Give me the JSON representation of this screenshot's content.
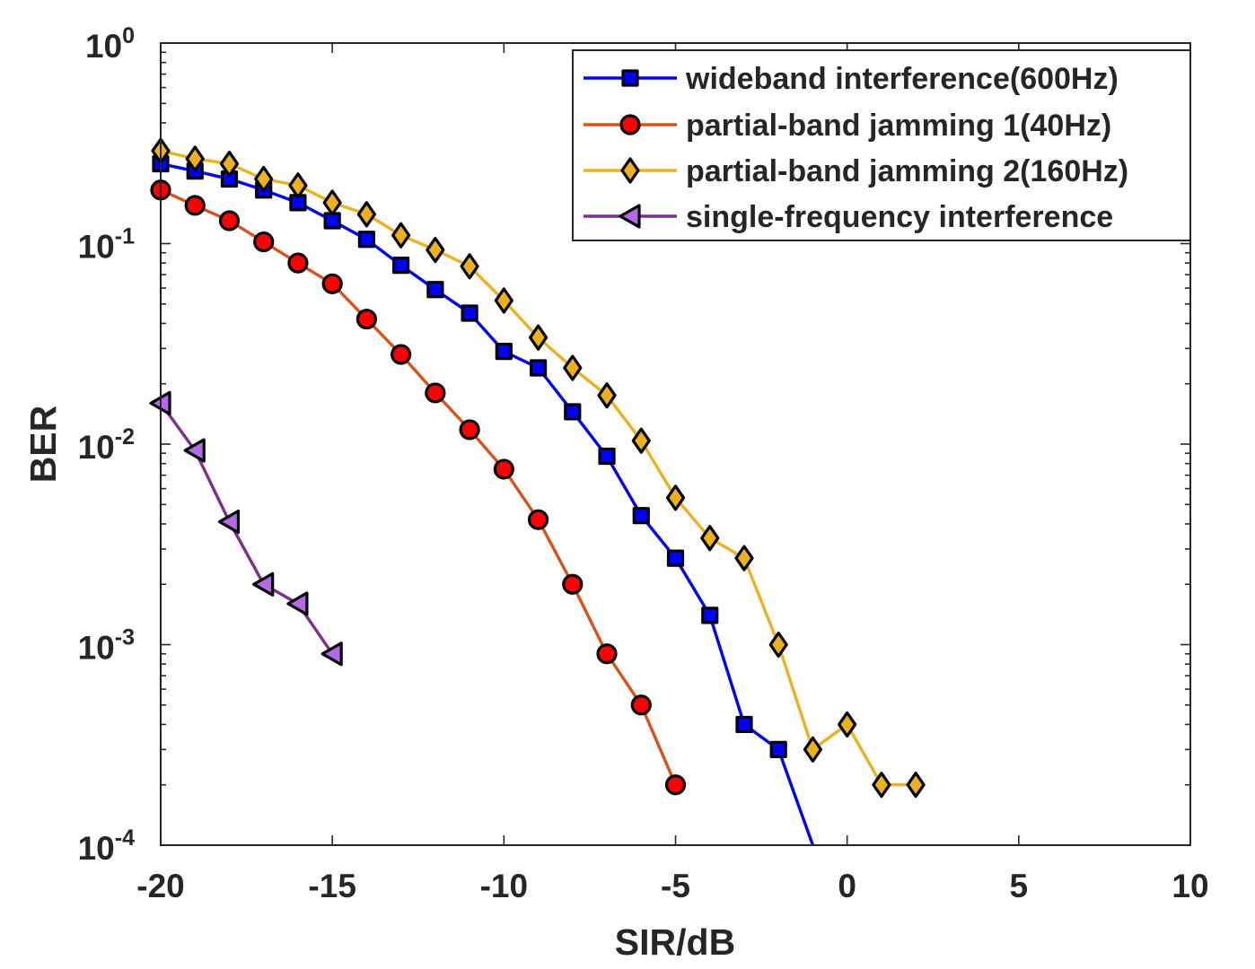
{
  "chart_data": {
    "type": "line",
    "xlabel": "SIR/dB",
    "ylabel": "BER",
    "xlim": [
      -20,
      10
    ],
    "ylim": [
      0.0001,
      1
    ],
    "yscale": "log",
    "x_ticks": [
      -20,
      -15,
      -10,
      -5,
      0,
      5,
      10
    ],
    "x_tick_labels": [
      "-20",
      "-15",
      "-10",
      "-5",
      "0",
      "5",
      "10"
    ],
    "y_ticks": [
      0.0001,
      0.001,
      0.01,
      0.1,
      1
    ],
    "y_tick_labels": [
      {
        "base": "10",
        "exp": "-4"
      },
      {
        "base": "10",
        "exp": "-3"
      },
      {
        "base": "10",
        "exp": "-2"
      },
      {
        "base": "10",
        "exp": "-1"
      },
      {
        "base": "10",
        "exp": "0"
      }
    ],
    "legend_position": "top-right",
    "series": [
      {
        "name": "wideband interference(600Hz)",
        "color": "#0000FF",
        "marker": "square",
        "marker_fill": "#0000FF",
        "x": [
          -20,
          -19,
          -18,
          -17,
          -16,
          -15,
          -14,
          -13,
          -12,
          -11,
          -10,
          -9,
          -8,
          -7,
          -6,
          -5,
          -4,
          -3,
          -2
        ],
        "y": [
          0.25,
          0.23,
          0.21,
          0.185,
          0.16,
          0.13,
          0.105,
          0.078,
          0.059,
          0.045,
          0.029,
          0.024,
          0.0145,
          0.0087,
          0.0044,
          0.0027,
          0.0014,
          0.0004,
          0.0003
        ],
        "line_extension": {
          "x": -1,
          "y": 0.0001
        }
      },
      {
        "name": "partial-band jamming 1(40Hz)",
        "color": "#D95319",
        "marker": "circle",
        "marker_fill": "#FF0000",
        "x": [
          -20,
          -19,
          -18,
          -17,
          -16,
          -15,
          -14,
          -13,
          -12,
          -11,
          -10,
          -9,
          -8,
          -7,
          -6,
          -5
        ],
        "y": [
          0.185,
          0.155,
          0.13,
          0.102,
          0.08,
          0.063,
          0.042,
          0.028,
          0.018,
          0.0118,
          0.0075,
          0.0042,
          0.002,
          0.0009,
          0.0005,
          0.0002
        ]
      },
      {
        "name": "partial-band jamming 2(160Hz)",
        "color": "#EDB120",
        "marker": "diamond",
        "marker_fill": "#EDB120",
        "x": [
          -20,
          -19,
          -18,
          -17,
          -16,
          -15,
          -14,
          -13,
          -12,
          -11,
          -10,
          -9,
          -8,
          -7,
          -6,
          -5,
          -4,
          -3,
          -2,
          -1,
          0,
          1,
          2
        ],
        "y": [
          0.29,
          0.265,
          0.25,
          0.21,
          0.195,
          0.16,
          0.14,
          0.11,
          0.093,
          0.077,
          0.052,
          0.034,
          0.024,
          0.0175,
          0.0104,
          0.0054,
          0.0034,
          0.0027,
          0.001,
          0.0003,
          0.0004,
          0.0002,
          0.0002
        ]
      },
      {
        "name": "single-frequency interference",
        "color": "#7E2F8E",
        "marker": "triangle-left",
        "marker_fill": "#B469E8",
        "x": [
          -20,
          -19,
          -18,
          -17,
          -16,
          -15
        ],
        "y": [
          0.016,
          0.0093,
          0.0041,
          0.002,
          0.0016,
          0.0009
        ]
      }
    ]
  }
}
